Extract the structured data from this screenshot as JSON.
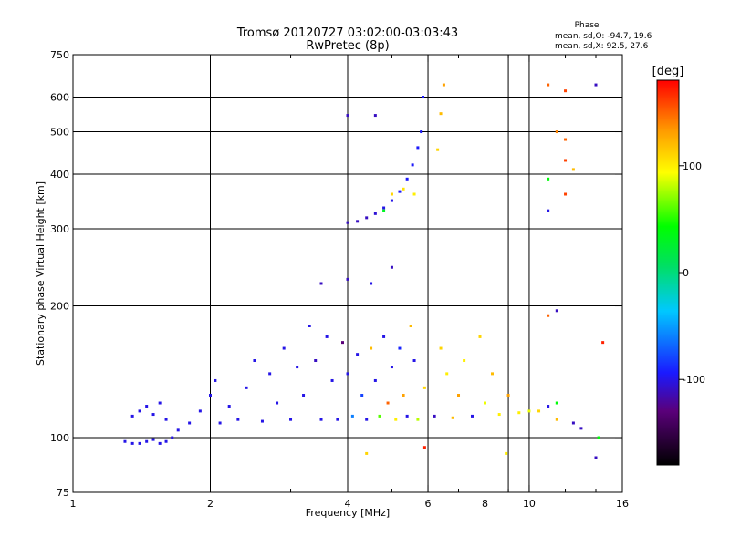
{
  "chart_data": {
    "type": "scatter",
    "title": "Tromsø 20120727 03:02:00-03:03:43",
    "subtitle": "RwPretec (8p)",
    "phase_stats": {
      "header": "Phase",
      "line_o": "mean, sd,O: -94.7, 19.6",
      "line_x": "mean, sd,X:  92.5, 27.6"
    },
    "xlabel": "Frequency [MHz]",
    "ylabel": "Stationary phase Virtual Height [km]",
    "xscale": "log",
    "yscale": "log",
    "xlim": [
      1,
      16
    ],
    "ylim": [
      75,
      750
    ],
    "x_ticks": [
      1,
      2,
      4,
      6,
      8,
      10,
      16
    ],
    "x_tick_labels": [
      "1",
      "2",
      "4",
      "6",
      "8",
      "10",
      "16"
    ],
    "x_minor_ticks": [
      3,
      5,
      7,
      9,
      12,
      14
    ],
    "x_grid": [
      2,
      4,
      6,
      8,
      9,
      10
    ],
    "y_ticks": [
      75,
      100,
      200,
      300,
      400,
      500,
      600,
      750
    ],
    "y_tick_labels": [
      "75",
      "100",
      "200",
      "300",
      "400",
      "500",
      "600",
      "750"
    ],
    "y_grid": [
      100,
      200,
      300,
      400,
      500,
      600
    ],
    "grid": true,
    "colorbar": {
      "label": "[deg]",
      "range": [
        -180,
        180
      ],
      "ticks": [
        100,
        0,
        -100
      ],
      "tick_labels": [
        "100",
        "0",
        "-100"
      ]
    },
    "series": [
      {
        "values": [
          {
            "x": 1.3,
            "y": 98,
            "phase": -100
          },
          {
            "x": 1.35,
            "y": 97,
            "phase": -100
          },
          {
            "x": 1.4,
            "y": 97,
            "phase": -100
          },
          {
            "x": 1.45,
            "y": 98,
            "phase": -100
          },
          {
            "x": 1.5,
            "y": 99,
            "phase": -100
          },
          {
            "x": 1.55,
            "y": 97,
            "phase": -100
          },
          {
            "x": 1.6,
            "y": 98,
            "phase": -100
          },
          {
            "x": 1.65,
            "y": 100,
            "phase": -100
          },
          {
            "x": 1.35,
            "y": 112,
            "phase": -100
          },
          {
            "x": 1.4,
            "y": 115,
            "phase": -100
          },
          {
            "x": 1.45,
            "y": 118,
            "phase": -100
          },
          {
            "x": 1.5,
            "y": 113,
            "phase": -100
          },
          {
            "x": 1.55,
            "y": 120,
            "phase": -100
          },
          {
            "x": 1.6,
            "y": 110,
            "phase": -100
          },
          {
            "x": 1.7,
            "y": 104,
            "phase": -100
          },
          {
            "x": 1.8,
            "y": 108,
            "phase": -100
          },
          {
            "x": 1.9,
            "y": 115,
            "phase": -100
          },
          {
            "x": 2.0,
            "y": 125,
            "phase": -100
          },
          {
            "x": 2.05,
            "y": 135,
            "phase": -100
          },
          {
            "x": 2.1,
            "y": 108,
            "phase": -100
          },
          {
            "x": 2.2,
            "y": 118,
            "phase": -100
          },
          {
            "x": 2.3,
            "y": 110,
            "phase": -100
          },
          {
            "x": 2.4,
            "y": 130,
            "phase": -100
          },
          {
            "x": 2.5,
            "y": 150,
            "phase": -100
          },
          {
            "x": 2.6,
            "y": 109,
            "phase": -100
          },
          {
            "x": 2.7,
            "y": 140,
            "phase": -100
          },
          {
            "x": 2.8,
            "y": 120,
            "phase": -100
          },
          {
            "x": 2.9,
            "y": 160,
            "phase": -100
          },
          {
            "x": 3.0,
            "y": 110,
            "phase": -100
          },
          {
            "x": 3.1,
            "y": 145,
            "phase": -100
          },
          {
            "x": 3.2,
            "y": 125,
            "phase": -100
          },
          {
            "x": 3.3,
            "y": 180,
            "phase": -100
          },
          {
            "x": 3.4,
            "y": 150,
            "phase": -110
          },
          {
            "x": 3.5,
            "y": 110,
            "phase": -100
          },
          {
            "x": 3.6,
            "y": 170,
            "phase": -100
          },
          {
            "x": 3.7,
            "y": 135,
            "phase": -100
          },
          {
            "x": 3.8,
            "y": 110,
            "phase": -100
          },
          {
            "x": 3.9,
            "y": 165,
            "phase": -130
          },
          {
            "x": 4.0,
            "y": 140,
            "phase": -100
          },
          {
            "x": 4.1,
            "y": 112,
            "phase": -60
          },
          {
            "x": 4.2,
            "y": 155,
            "phase": -100
          },
          {
            "x": 4.3,
            "y": 125,
            "phase": -80
          },
          {
            "x": 4.4,
            "y": 110,
            "phase": -100
          },
          {
            "x": 4.5,
            "y": 160,
            "phase": 120
          },
          {
            "x": 4.6,
            "y": 135,
            "phase": -100
          },
          {
            "x": 4.7,
            "y": 112,
            "phase": 60
          },
          {
            "x": 4.8,
            "y": 170,
            "phase": -100
          },
          {
            "x": 4.9,
            "y": 120,
            "phase": 150
          },
          {
            "x": 5.0,
            "y": 145,
            "phase": -100
          },
          {
            "x": 5.1,
            "y": 110,
            "phase": 100
          },
          {
            "x": 5.2,
            "y": 160,
            "phase": -90
          },
          {
            "x": 5.3,
            "y": 125,
            "phase": 130
          },
          {
            "x": 5.4,
            "y": 112,
            "phase": -100
          },
          {
            "x": 5.5,
            "y": 180,
            "phase": 120
          },
          {
            "x": 5.6,
            "y": 150,
            "phase": -100
          },
          {
            "x": 5.7,
            "y": 110,
            "phase": 80
          },
          {
            "x": 5.9,
            "y": 130,
            "phase": 110
          },
          {
            "x": 6.2,
            "y": 112,
            "phase": -110
          },
          {
            "x": 6.4,
            "y": 160,
            "phase": 110
          },
          {
            "x": 6.6,
            "y": 140,
            "phase": 100
          },
          {
            "x": 6.8,
            "y": 111,
            "phase": 120
          },
          {
            "x": 7.0,
            "y": 125,
            "phase": 130
          },
          {
            "x": 7.2,
            "y": 150,
            "phase": 100
          },
          {
            "x": 7.5,
            "y": 112,
            "phase": -100
          },
          {
            "x": 7.8,
            "y": 170,
            "phase": 110
          },
          {
            "x": 8.0,
            "y": 120,
            "phase": 90
          },
          {
            "x": 8.3,
            "y": 140,
            "phase": 120
          },
          {
            "x": 8.6,
            "y": 113,
            "phase": 100
          },
          {
            "x": 9.0,
            "y": 125,
            "phase": 130
          },
          {
            "x": 9.5,
            "y": 114,
            "phase": 100
          },
          {
            "x": 10.0,
            "y": 115,
            "phase": 90
          },
          {
            "x": 10.5,
            "y": 115,
            "phase": 110
          },
          {
            "x": 11.0,
            "y": 118,
            "phase": -100
          },
          {
            "x": 11.5,
            "y": 110,
            "phase": 120
          },
          {
            "x": 4.0,
            "y": 310,
            "phase": -110
          },
          {
            "x": 4.2,
            "y": 312,
            "phase": -110
          },
          {
            "x": 4.4,
            "y": 318,
            "phase": -110
          },
          {
            "x": 4.6,
            "y": 325,
            "phase": -105
          },
          {
            "x": 4.8,
            "y": 335,
            "phase": -100
          },
          {
            "x": 5.0,
            "y": 348,
            "phase": -100
          },
          {
            "x": 5.2,
            "y": 365,
            "phase": -95
          },
          {
            "x": 5.4,
            "y": 390,
            "phase": -95
          },
          {
            "x": 5.55,
            "y": 420,
            "phase": -95
          },
          {
            "x": 5.7,
            "y": 460,
            "phase": -95
          },
          {
            "x": 5.8,
            "y": 500,
            "phase": -95
          },
          {
            "x": 5.85,
            "y": 600,
            "phase": -95
          },
          {
            "x": 5.0,
            "y": 360,
            "phase": 110
          },
          {
            "x": 5.3,
            "y": 370,
            "phase": 105
          },
          {
            "x": 5.6,
            "y": 360,
            "phase": 100
          },
          {
            "x": 4.8,
            "y": 330,
            "phase": 30
          },
          {
            "x": 4.0,
            "y": 545,
            "phase": -110
          },
          {
            "x": 4.6,
            "y": 545,
            "phase": -110
          },
          {
            "x": 3.5,
            "y": 225,
            "phase": -110
          },
          {
            "x": 4.0,
            "y": 230,
            "phase": -110
          },
          {
            "x": 4.5,
            "y": 225,
            "phase": -100
          },
          {
            "x": 5.0,
            "y": 245,
            "phase": -110
          },
          {
            "x": 6.5,
            "y": 640,
            "phase": 130
          },
          {
            "x": 6.4,
            "y": 550,
            "phase": 120
          },
          {
            "x": 6.3,
            "y": 455,
            "phase": 110
          },
          {
            "x": 11.0,
            "y": 640,
            "phase": 150
          },
          {
            "x": 12.0,
            "y": 620,
            "phase": 160
          },
          {
            "x": 14.0,
            "y": 640,
            "phase": -110
          },
          {
            "x": 11.5,
            "y": 500,
            "phase": 140
          },
          {
            "x": 12.0,
            "y": 480,
            "phase": 150
          },
          {
            "x": 12.0,
            "y": 430,
            "phase": 160
          },
          {
            "x": 12.5,
            "y": 410,
            "phase": 120
          },
          {
            "x": 11.0,
            "y": 390,
            "phase": 40
          },
          {
            "x": 12.0,
            "y": 360,
            "phase": 160
          },
          {
            "x": 11.0,
            "y": 330,
            "phase": -100
          },
          {
            "x": 11.0,
            "y": 190,
            "phase": 150
          },
          {
            "x": 11.5,
            "y": 195,
            "phase": -110
          },
          {
            "x": 14.5,
            "y": 165,
            "phase": 170
          },
          {
            "x": 11.5,
            "y": 120,
            "phase": 40
          },
          {
            "x": 12.5,
            "y": 108,
            "phase": -110
          },
          {
            "x": 13.0,
            "y": 105,
            "phase": -110
          },
          {
            "x": 14.0,
            "y": 90,
            "phase": -110
          },
          {
            "x": 14.2,
            "y": 100,
            "phase": 40
          },
          {
            "x": 4.4,
            "y": 92,
            "phase": 110
          },
          {
            "x": 5.9,
            "y": 95,
            "phase": 170
          },
          {
            "x": 8.9,
            "y": 92,
            "phase": 100
          }
        ]
      }
    ]
  }
}
